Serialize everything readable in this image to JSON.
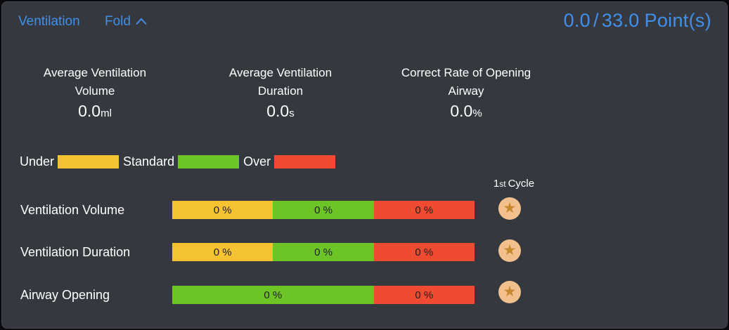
{
  "panel": {
    "title": "Ventilation",
    "fold_label": "Fold"
  },
  "score": {
    "achieved": "0.0",
    "separator": "/",
    "total": "33.0",
    "unit": "Point(s)"
  },
  "stats": [
    {
      "title_line1": "Average Ventilation",
      "title_line2": "Volume",
      "value": "0.0",
      "unit": "ml"
    },
    {
      "title_line1": "Average Ventilation",
      "title_line2": "Duration",
      "value": "0.0",
      "unit": "s"
    },
    {
      "title_line1": "Correct Rate of Opening",
      "title_line2": "Airway",
      "value": "0.0",
      "unit": "%"
    }
  ],
  "legend": [
    {
      "label": "Under",
      "type": "under"
    },
    {
      "label": "Standard",
      "type": "standard"
    },
    {
      "label": "Over",
      "type": "over"
    }
  ],
  "cycle_header": {
    "number": "1",
    "ordinal": "st",
    "rest": "Cycle"
  },
  "rows": [
    {
      "label": "Ventilation Volume",
      "segments": [
        {
          "type": "under",
          "label": "0 %",
          "percent": 33.33
        },
        {
          "type": "standard",
          "label": "0 %",
          "percent": 33.34
        },
        {
          "type": "over",
          "label": "0 %",
          "percent": 33.33
        }
      ]
    },
    {
      "label": "Ventilation Duration",
      "segments": [
        {
          "type": "under",
          "label": "0 %",
          "percent": 33.33
        },
        {
          "type": "standard",
          "label": "0 %",
          "percent": 33.34
        },
        {
          "type": "over",
          "label": "0 %",
          "percent": 33.33
        }
      ]
    },
    {
      "label": "Airway Opening",
      "segments": [
        {
          "type": "standard",
          "label": "0 %",
          "percent": 66.67
        },
        {
          "type": "over",
          "label": "0 %",
          "percent": 33.33
        }
      ]
    }
  ],
  "colors": {
    "under": "#f5c232",
    "standard": "#6cc426",
    "over": "#ee4b31",
    "accent_blue": "#4090ea",
    "star_badge_bg": "#f2c08c",
    "star_icon": "#c8882f"
  }
}
